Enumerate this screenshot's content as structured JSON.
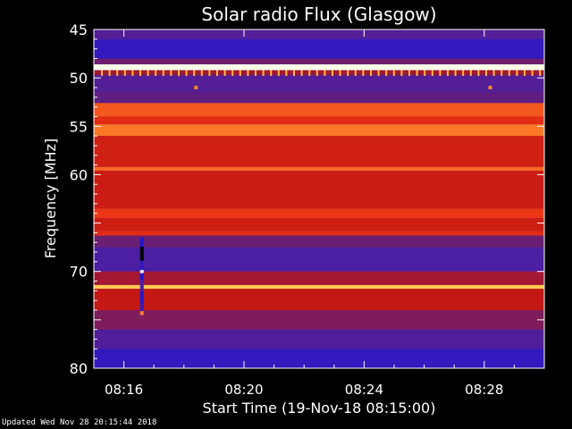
{
  "chart_data": {
    "type": "heatmap",
    "title": "Solar radio Flux (Glasgow)",
    "ylabel": "Frequency [MHz]",
    "xlabel": "Start Time (19-Nov-18 08:15:00)",
    "y_range": [
      45,
      80
    ],
    "y_ticks": [
      45,
      50,
      55,
      60,
      65,
      70,
      75,
      80
    ],
    "y_tick_labels": [
      "45",
      "50",
      "55",
      "60",
      "",
      "70",
      "",
      "80"
    ],
    "x_range": [
      "08:15:00",
      "08:30:00"
    ],
    "x_tick_labels": [
      "08:16",
      "08:20",
      "08:24",
      "08:28"
    ],
    "x_ticks_minutes": [
      1,
      5,
      9,
      13
    ],
    "colormap": "blue-purple-red-orange-yellow-white",
    "frequency_bands": [
      {
        "from": 45.0,
        "to": 46.0,
        "level": 0.25
      },
      {
        "from": 46.0,
        "to": 48.0,
        "level": 0.12
      },
      {
        "from": 48.0,
        "to": 48.6,
        "level": 0.35
      },
      {
        "from": 48.6,
        "to": 49.2,
        "level": 1.0
      },
      {
        "from": 49.2,
        "to": 49.7,
        "level": 0.45
      },
      {
        "from": 49.7,
        "to": 51.5,
        "level": 0.25
      },
      {
        "from": 51.5,
        "to": 52.6,
        "level": 0.3
      },
      {
        "from": 52.6,
        "to": 54.0,
        "level": 0.72
      },
      {
        "from": 54.0,
        "to": 54.8,
        "level": 0.62
      },
      {
        "from": 54.8,
        "to": 56.0,
        "level": 0.78
      },
      {
        "from": 56.0,
        "to": 59.2,
        "level": 0.56
      },
      {
        "from": 59.2,
        "to": 59.6,
        "level": 0.75
      },
      {
        "from": 59.6,
        "to": 63.5,
        "level": 0.54
      },
      {
        "from": 63.5,
        "to": 64.5,
        "level": 0.66
      },
      {
        "from": 64.5,
        "to": 65.8,
        "level": 0.55
      },
      {
        "from": 65.8,
        "to": 66.3,
        "level": 0.62
      },
      {
        "from": 66.3,
        "to": 67.5,
        "level": 0.34
      },
      {
        "from": 67.5,
        "to": 70.0,
        "level": 0.22
      },
      {
        "from": 70.0,
        "to": 71.4,
        "level": 0.45
      },
      {
        "from": 71.4,
        "to": 71.8,
        "level": 0.9
      },
      {
        "from": 71.8,
        "to": 74.0,
        "level": 0.52
      },
      {
        "from": 74.0,
        "to": 76.0,
        "level": 0.38
      },
      {
        "from": 76.0,
        "to": 78.0,
        "level": 0.24
      },
      {
        "from": 78.0,
        "to": 80.0,
        "level": 0.12
      }
    ],
    "burst_events": [
      {
        "minute": 1.6,
        "from": 66.5,
        "to": 74.5,
        "type": "vertical"
      },
      {
        "minute": 3.4,
        "from": 51.0,
        "to": 51.2,
        "type": "dot"
      },
      {
        "minute": 13.2,
        "from": 51.0,
        "to": 51.2,
        "type": "dot"
      }
    ]
  },
  "footer": {
    "updated_text": "Updated Wed Nov 28 20:15:44 2018"
  }
}
